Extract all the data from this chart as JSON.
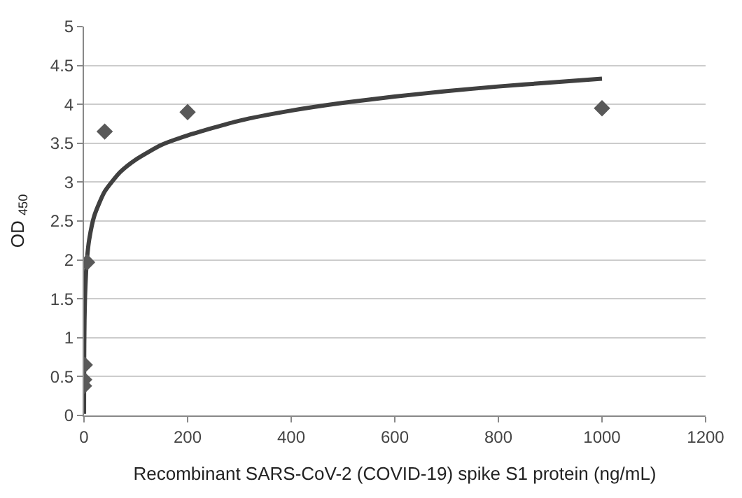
{
  "chart_data": {
    "type": "scatter",
    "xlabel": "Recombinant SARS-CoV-2 (COVID-19) spike S1 protein (ng/mL)",
    "ylabel": "OD $_{450}$",
    "xlim": [
      0,
      1200
    ],
    "xticks": [
      0,
      200,
      400,
      600,
      800,
      1000,
      1200
    ],
    "ylim": [
      0,
      5
    ],
    "yticks": [
      0,
      0.5,
      1,
      1.5,
      2,
      2.5,
      3,
      3.5,
      4,
      4.5,
      5
    ],
    "grid": "y",
    "series": [
      {
        "type": "line",
        "marker": "none",
        "line_style": "solid",
        "color": "#404040",
        "x": [
          0.07,
          0.2,
          0.5,
          1,
          2,
          4,
          6,
          10,
          20,
          40,
          70,
          100,
          150,
          200,
          300,
          400,
          500,
          600,
          700,
          800,
          900,
          1000
        ],
        "values": [
          0.02,
          0.5,
          0.91,
          1.22,
          1.53,
          1.84,
          2.03,
          2.26,
          2.57,
          2.88,
          3.13,
          3.29,
          3.48,
          3.6,
          3.79,
          3.92,
          4.02,
          4.1,
          4.17,
          4.23,
          4.28,
          4.33
        ]
      },
      {
        "marker": "diamond",
        "color": "#595959",
        "x": [
          0,
          0.3,
          1.5,
          6,
          40,
          200,
          1000
        ],
        "values": [
          0.38,
          0.46,
          0.65,
          1.97,
          3.65,
          3.9,
          3.95
        ]
      }
    ]
  }
}
